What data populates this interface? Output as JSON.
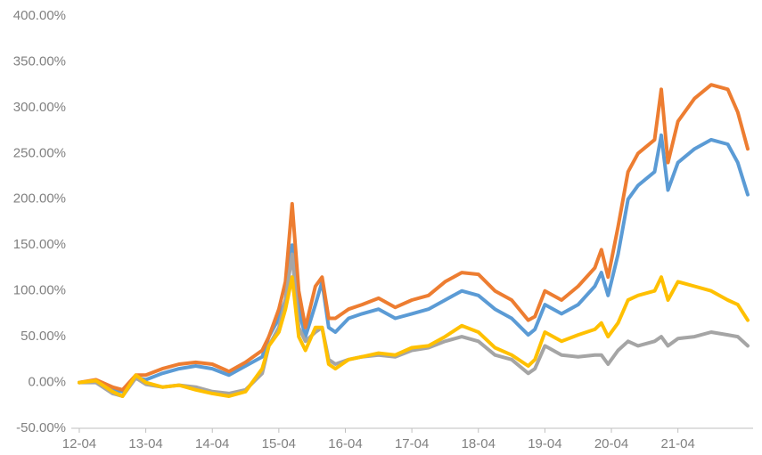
{
  "chart_data": {
    "type": "line",
    "x": [
      2012.25,
      2012.5,
      2012.75,
      2012.9,
      2013.1,
      2013.25,
      2013.5,
      2013.75,
      2014.0,
      2014.25,
      2014.5,
      2014.75,
      2015.0,
      2015.1,
      2015.25,
      2015.35,
      2015.45,
      2015.55,
      2015.65,
      2015.8,
      2015.9,
      2016.0,
      2016.1,
      2016.3,
      2016.5,
      2016.75,
      2017.0,
      2017.25,
      2017.5,
      2017.75,
      2018.0,
      2018.25,
      2018.5,
      2018.75,
      2019.0,
      2019.1,
      2019.25,
      2019.5,
      2019.75,
      2020.0,
      2020.1,
      2020.2,
      2020.35,
      2020.5,
      2020.65,
      2020.9,
      2021.0,
      2021.1,
      2021.25,
      2021.5,
      2021.75,
      2022.0,
      2022.15,
      2022.3
    ],
    "series": [
      {
        "color": "#5b9bd5",
        "values": [
          0,
          2,
          -8,
          -10,
          5,
          3,
          10,
          15,
          18,
          15,
          8,
          18,
          28,
          50,
          70,
          90,
          150,
          80,
          50,
          85,
          110,
          60,
          55,
          70,
          75,
          80,
          70,
          75,
          80,
          90,
          100,
          95,
          80,
          70,
          52,
          58,
          85,
          75,
          85,
          105,
          120,
          95,
          140,
          200,
          215,
          230,
          270,
          210,
          240,
          255,
          265,
          260,
          240,
          205
        ]
      },
      {
        "color": "#ed7d31",
        "values": [
          0,
          3,
          -5,
          -8,
          8,
          8,
          15,
          20,
          22,
          20,
          12,
          22,
          35,
          50,
          80,
          110,
          195,
          100,
          60,
          105,
          115,
          70,
          70,
          80,
          85,
          92,
          82,
          90,
          95,
          110,
          120,
          118,
          100,
          90,
          68,
          72,
          100,
          90,
          105,
          125,
          145,
          115,
          170,
          230,
          250,
          265,
          320,
          240,
          285,
          310,
          325,
          320,
          295,
          255
        ]
      },
      {
        "color": "#a5a5a5",
        "values": [
          0,
          0,
          -12,
          -15,
          5,
          -2,
          -5,
          -3,
          -5,
          -10,
          -12,
          -8,
          10,
          40,
          60,
          90,
          140,
          60,
          45,
          55,
          60,
          25,
          20,
          25,
          28,
          30,
          28,
          35,
          38,
          45,
          50,
          45,
          30,
          25,
          10,
          15,
          40,
          30,
          28,
          30,
          30,
          20,
          35,
          45,
          40,
          45,
          50,
          40,
          48,
          50,
          55,
          52,
          50,
          40
        ]
      },
      {
        "color": "#ffc000",
        "values": [
          0,
          2,
          -10,
          -15,
          8,
          0,
          -5,
          -3,
          -8,
          -12,
          -15,
          -10,
          15,
          40,
          55,
          80,
          115,
          50,
          35,
          60,
          60,
          20,
          15,
          25,
          28,
          32,
          30,
          38,
          40,
          50,
          62,
          55,
          38,
          30,
          18,
          25,
          55,
          45,
          52,
          58,
          65,
          50,
          65,
          90,
          95,
          100,
          115,
          90,
          110,
          105,
          100,
          90,
          85,
          68
        ]
      }
    ],
    "xlim": [
      2012.13,
      2022.38
    ],
    "xticks": [
      {
        "value": 2012.25,
        "label": "12-04"
      },
      {
        "value": 2013.25,
        "label": "13-04"
      },
      {
        "value": 2014.25,
        "label": "14-04"
      },
      {
        "value": 2015.25,
        "label": "15-04"
      },
      {
        "value": 2016.25,
        "label": "16-04"
      },
      {
        "value": 2017.25,
        "label": "17-04"
      },
      {
        "value": 2018.25,
        "label": "18-04"
      },
      {
        "value": 2019.25,
        "label": "19-04"
      },
      {
        "value": 2020.25,
        "label": "20-04"
      },
      {
        "value": 2021.25,
        "label": "21-04"
      }
    ],
    "ylim": [
      -50,
      400
    ],
    "yticks": [
      {
        "value": -50,
        "label": "-50.00%"
      },
      {
        "value": 0,
        "label": "0.00%"
      },
      {
        "value": 50,
        "label": "50.00%"
      },
      {
        "value": 100,
        "label": "100.00%"
      },
      {
        "value": 150,
        "label": "150.00%"
      },
      {
        "value": 200,
        "label": "200.00%"
      },
      {
        "value": 250,
        "label": "250.00%"
      },
      {
        "value": 300,
        "label": "300.00%"
      },
      {
        "value": 350,
        "label": "350.00%"
      },
      {
        "value": 400,
        "label": "400.00%"
      }
    ],
    "grid": false
  }
}
